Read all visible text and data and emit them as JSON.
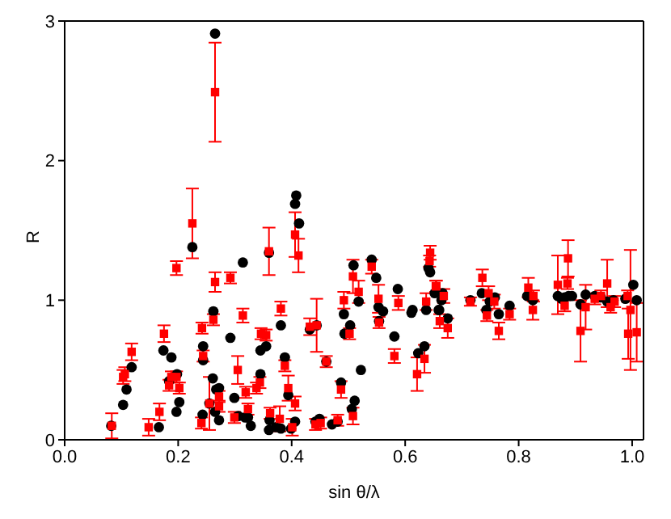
{
  "chart_data": {
    "type": "scatter",
    "xlabel": "sin θ/λ",
    "ylabel": "R",
    "xlim": [
      0,
      1.02
    ],
    "ylim": [
      0,
      3
    ],
    "xticks": [
      {
        "value": 0,
        "label": "0.0"
      },
      {
        "value": 0.2,
        "label": "0.2"
      },
      {
        "value": 0.4,
        "label": "0.4"
      },
      {
        "value": 0.6,
        "label": "0.6"
      },
      {
        "value": 0.8,
        "label": "0.8"
      },
      {
        "value": 1,
        "label": "1.0"
      }
    ],
    "yticks": [
      0,
      1,
      2,
      3
    ],
    "series": [
      {
        "color": "#000000",
        "marker": "circle",
        "x": [
          0.082,
          0.103,
          0.109,
          0.118,
          0.166,
          0.174,
          0.184,
          0.188,
          0.197,
          0.198,
          0.202,
          0.225,
          0.243,
          0.244,
          0.244,
          0.255,
          0.261,
          0.262,
          0.265,
          0.265,
          0.267,
          0.272,
          0.272,
          0.292,
          0.299,
          0.306,
          0.314,
          0.318,
          0.323,
          0.328,
          0.345,
          0.345,
          0.355,
          0.36,
          0.36,
          0.408,
          0.406,
          0.413,
          0.381,
          0.388,
          0.394,
          0.406,
          0.399,
          0.372,
          0.381,
          0.361,
          0.432,
          0.444,
          0.461,
          0.449,
          0.442,
          0.471,
          0.481,
          0.487,
          0.492,
          0.493,
          0.503,
          0.509,
          0.518,
          0.506,
          0.511,
          0.522,
          0.541,
          0.549,
          0.553,
          0.561,
          0.554,
          0.587,
          0.581,
          0.613,
          0.611,
          0.623,
          0.634,
          0.637,
          0.641,
          0.644,
          0.66,
          0.664,
          0.652,
          0.659,
          0.666,
          0.675,
          0.715,
          0.735,
          0.743,
          0.749,
          0.758,
          0.765,
          0.784,
          0.815,
          0.825,
          0.869,
          0.876,
          0.881,
          0.888,
          0.894,
          0.909,
          0.918,
          0.934,
          0.945,
          0.956,
          0.967,
          0.988,
          1.002,
          1.008
        ],
        "values": [
          0.1,
          0.25,
          0.36,
          0.52,
          0.09,
          0.64,
          0.42,
          0.59,
          0.2,
          0.47,
          0.27,
          1.38,
          0.18,
          0.67,
          0.57,
          0.26,
          0.44,
          0.92,
          2.91,
          0.2,
          0.36,
          0.37,
          0.14,
          0.73,
          0.3,
          0.17,
          1.27,
          0.16,
          0.16,
          0.1,
          0.64,
          0.47,
          0.67,
          1.34,
          0.07,
          1.75,
          1.69,
          1.55,
          0.82,
          0.59,
          0.32,
          0.13,
          0.08,
          0.09,
          0.08,
          0.14,
          0.79,
          0.82,
          0.56,
          0.15,
          0.13,
          0.11,
          0.13,
          0.41,
          0.9,
          0.76,
          0.82,
          1.25,
          0.99,
          0.22,
          0.28,
          0.5,
          1.29,
          1.16,
          0.95,
          0.92,
          0.85,
          1.08,
          0.74,
          0.93,
          0.91,
          0.62,
          0.67,
          0.93,
          1.23,
          1.2,
          0.93,
          1.0,
          1.05,
          0.93,
          1.05,
          0.87,
          1.0,
          1.05,
          0.93,
          0.99,
          1.02,
          0.9,
          0.96,
          1.03,
          1.0,
          1.03,
          1.01,
          1.02,
          1.03,
          1.03,
          0.97,
          1.04,
          1.03,
          1.02,
          0.99,
          1.0,
          1.01,
          1.11,
          1.0
        ]
      },
      {
        "color": "#ff0000",
        "marker": "square",
        "x": [
          0.083,
          0.148,
          0.103,
          0.106,
          0.118,
          0.167,
          0.175,
          0.184,
          0.188,
          0.197,
          0.197,
          0.202,
          0.225,
          0.242,
          0.244,
          0.241,
          0.255,
          0.265,
          0.265,
          0.262,
          0.272,
          0.272,
          0.292,
          0.305,
          0.299,
          0.314,
          0.319,
          0.323,
          0.346,
          0.355,
          0.338,
          0.344,
          0.36,
          0.406,
          0.412,
          0.381,
          0.388,
          0.394,
          0.406,
          0.379,
          0.401,
          0.362,
          0.432,
          0.444,
          0.461,
          0.442,
          0.451,
          0.481,
          0.487,
          0.492,
          0.508,
          0.518,
          0.508,
          0.502,
          0.541,
          0.553,
          0.554,
          0.588,
          0.581,
          0.621,
          0.634,
          0.637,
          0.644,
          0.643,
          0.654,
          0.661,
          0.655,
          0.668,
          0.675,
          0.715,
          0.736,
          0.747,
          0.744,
          0.757,
          0.765,
          0.784,
          0.817,
          0.826,
          0.825,
          0.869,
          0.887,
          0.886,
          0.881,
          0.909,
          0.918,
          0.934,
          0.945,
          0.956,
          0.962,
          0.969,
          0.992,
          0.993,
          0.997,
          1.008
        ],
        "values": [
          0.1,
          0.09,
          0.45,
          0.47,
          0.63,
          0.2,
          0.76,
          0.39,
          0.45,
          1.23,
          0.45,
          0.37,
          1.55,
          0.8,
          0.6,
          0.12,
          0.26,
          2.49,
          1.13,
          0.86,
          0.24,
          0.31,
          1.16,
          0.5,
          0.16,
          0.89,
          0.34,
          0.22,
          0.76,
          0.75,
          0.37,
          0.41,
          1.35,
          1.47,
          1.32,
          0.94,
          0.53,
          0.37,
          0.26,
          0.15,
          0.09,
          0.19,
          0.81,
          0.82,
          0.56,
          0.11,
          0.12,
          0.14,
          0.36,
          1.0,
          1.17,
          1.06,
          0.17,
          0.76,
          1.24,
          1.01,
          0.84,
          0.98,
          0.6,
          0.47,
          0.58,
          0.99,
          1.34,
          1.28,
          1.1,
          0.85,
          1.1,
          1.03,
          0.8,
          0.99,
          1.16,
          1.05,
          0.89,
          0.99,
          0.78,
          0.9,
          1.09,
          1.03,
          0.93,
          1.11,
          1.3,
          1.12,
          0.96,
          0.78,
          0.95,
          1.01,
          1.03,
          1.12,
          0.95,
          0.99,
          1.03,
          0.76,
          0.93,
          0.77
        ],
        "errors": [
          0.09,
          0.06,
          0.05,
          0.05,
          0.06,
          0.06,
          0.06,
          0.04,
          0.04,
          0.05,
          0.04,
          0.04,
          0.25,
          0.04,
          0.04,
          0.04,
          0.19,
          0.355,
          0.07,
          0.04,
          0.04,
          0.04,
          0.04,
          0.1,
          0.04,
          0.05,
          0.04,
          0.04,
          0.04,
          0.04,
          0.04,
          0.04,
          0.17,
          0.16,
          0.12,
          0.05,
          0.04,
          0.09,
          0.05,
          0.09,
          0.06,
          0.04,
          0.06,
          0.19,
          0.04,
          0.04,
          0.04,
          0.04,
          0.06,
          0.06,
          0.12,
          0.08,
          0.06,
          0.04,
          0.05,
          0.1,
          0.04,
          0.05,
          0.05,
          0.12,
          0.1,
          0.06,
          0.05,
          0.04,
          0.04,
          0.05,
          0.04,
          0.05,
          0.07,
          0.03,
          0.06,
          0.05,
          0.04,
          0.05,
          0.06,
          0.04,
          0.07,
          0.04,
          0.07,
          0.21,
          0.13,
          0.04,
          0.04,
          0.22,
          0.16,
          0.04,
          0.04,
          0.17,
          0.04,
          0.04,
          0.04,
          0.18,
          0.43,
          0.21
        ]
      }
    ]
  }
}
